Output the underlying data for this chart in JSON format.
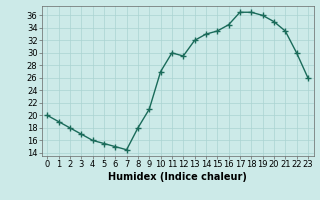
{
  "xlabel": "Humidex (Indice chaleur)",
  "x": [
    0,
    1,
    2,
    3,
    4,
    5,
    6,
    7,
    8,
    9,
    10,
    11,
    12,
    13,
    14,
    15,
    16,
    17,
    18,
    19,
    20,
    21,
    22,
    23
  ],
  "y": [
    20,
    19,
    18,
    17,
    16,
    15.5,
    15,
    14.5,
    18,
    21,
    27,
    30,
    29.5,
    32,
    33,
    33.5,
    34.5,
    36.5,
    36.5,
    36,
    35,
    33.5,
    30,
    26
  ],
  "line_color": "#1a6b5a",
  "marker": "+",
  "marker_size": 4,
  "marker_linewidth": 1.0,
  "bg_color": "#cceae8",
  "grid_color": "#aad4d2",
  "tick_label_fontsize": 6,
  "xlabel_fontsize": 7,
  "ylim": [
    13.5,
    37.5
  ],
  "yticks": [
    14,
    16,
    18,
    20,
    22,
    24,
    26,
    28,
    30,
    32,
    34,
    36
  ],
  "xlim": [
    -0.5,
    23.5
  ],
  "linewidth": 1.0
}
